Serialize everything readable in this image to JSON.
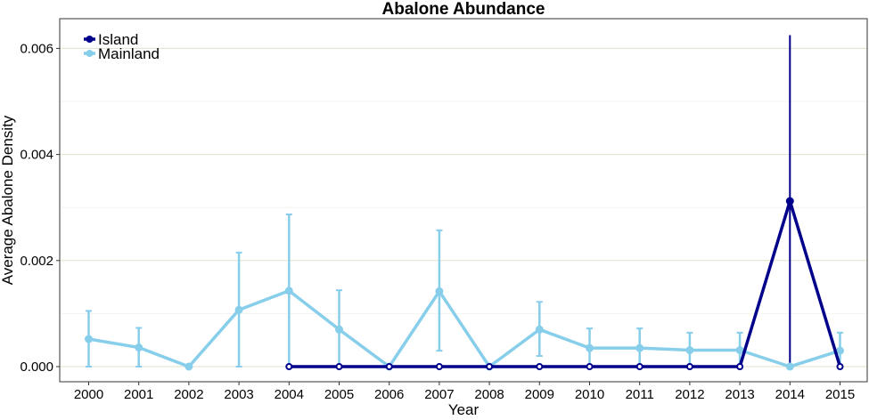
{
  "chart_data": {
    "type": "line",
    "title": "Abalone Abundance",
    "xlabel": "Year",
    "ylabel": "Average Abalone Density",
    "categories": [
      "2000",
      "2001",
      "2002",
      "2003",
      "2004",
      "2005",
      "2006",
      "2007",
      "2008",
      "2009",
      "2010",
      "2011",
      "2012",
      "2013",
      "2014",
      "2015"
    ],
    "ylim": [
      0,
      0.0063
    ],
    "yticks": [
      0.0,
      0.002,
      0.004,
      0.006
    ],
    "ytick_labels": [
      "0.000",
      "0.002",
      "0.004",
      "0.006"
    ],
    "grid": "horizontal",
    "legend_position": "top-left",
    "series": [
      {
        "name": "Island",
        "color": "#00008B",
        "values": [
          null,
          null,
          null,
          null,
          0,
          0,
          0,
          0,
          0,
          0,
          0,
          0,
          0,
          0,
          0.00312,
          0
        ],
        "upper": [
          null,
          null,
          null,
          null,
          null,
          null,
          null,
          null,
          null,
          null,
          null,
          null,
          null,
          null,
          0.00625,
          null
        ],
        "lower": [
          null,
          null,
          null,
          null,
          null,
          null,
          null,
          null,
          null,
          null,
          null,
          null,
          null,
          null,
          0,
          null
        ]
      },
      {
        "name": "Mainland",
        "color": "#87CEEB",
        "values": [
          0.00052,
          0.00036,
          0,
          0.00107,
          0.00143,
          0.0007,
          0,
          0.00142,
          0,
          0.0007,
          0.00035,
          0.00035,
          0.00031,
          0.00031,
          0,
          0.0003
        ],
        "upper": [
          0.00105,
          0.00073,
          null,
          0.00215,
          0.00287,
          0.00144,
          null,
          0.00257,
          null,
          0.00122,
          0.00072,
          0.00072,
          0.00064,
          0.00064,
          null,
          0.00064
        ],
        "lower": [
          0,
          0,
          null,
          0,
          0,
          0,
          null,
          0.0003,
          null,
          0.0002,
          0,
          0,
          0,
          0,
          null,
          0
        ]
      }
    ]
  }
}
